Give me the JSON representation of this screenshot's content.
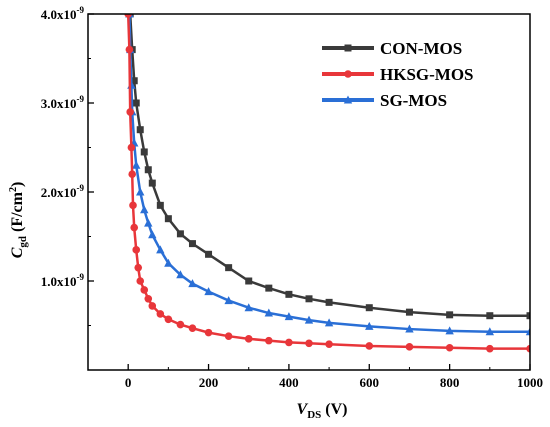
{
  "chart_data": {
    "type": "line",
    "xlabel": {
      "main": "V",
      "sub": "DS",
      "unit": " (V)"
    },
    "ylabel": {
      "main": "C",
      "sub": "gd",
      "unit_pre": " (F/cm",
      "unit_sup": "2",
      "unit_post": ")"
    },
    "xlim": [
      -100,
      1000
    ],
    "ylim": [
      0.0,
      4.0
    ],
    "y_scale_note": "values in units of 1e-9 F/cm^2",
    "x_ticks": [
      0,
      200,
      400,
      600,
      800,
      1000
    ],
    "x_tick_labels": [
      "0",
      "200",
      "400",
      "600",
      "800",
      "1000"
    ],
    "y_ticks": [
      1.0,
      2.0,
      3.0,
      4.0
    ],
    "y_tick_labels": [
      {
        "mant": "1.0x10",
        "exp": "-9"
      },
      {
        "mant": "2.0x10",
        "exp": "-9"
      },
      {
        "mant": "3.0x10",
        "exp": "-9"
      },
      {
        "mant": "4.0x10",
        "exp": "-9"
      }
    ],
    "grid": false,
    "legend_position": "top-right",
    "series": [
      {
        "name": "CON-MOS",
        "color": "#3a3a3a",
        "marker": "square",
        "x": [
          5,
          10,
          15,
          20,
          30,
          40,
          50,
          60,
          80,
          100,
          130,
          160,
          200,
          250,
          300,
          350,
          400,
          450,
          500,
          600,
          700,
          800,
          900,
          1000
        ],
        "y": [
          4.0,
          3.6,
          3.25,
          3.0,
          2.7,
          2.45,
          2.25,
          2.1,
          1.85,
          1.7,
          1.53,
          1.42,
          1.3,
          1.15,
          1.0,
          0.92,
          0.85,
          0.8,
          0.76,
          0.7,
          0.65,
          0.62,
          0.61,
          0.61
        ]
      },
      {
        "name": "HKSG-MOS",
        "color": "#e8363a",
        "marker": "circle",
        "x": [
          0,
          3,
          5,
          8,
          10,
          12,
          15,
          20,
          25,
          30,
          40,
          50,
          60,
          80,
          100,
          130,
          160,
          200,
          250,
          300,
          350,
          400,
          450,
          500,
          600,
          700,
          800,
          900,
          1000
        ],
        "y": [
          4.0,
          3.6,
          2.9,
          2.5,
          2.2,
          1.85,
          1.6,
          1.35,
          1.15,
          1.0,
          0.9,
          0.8,
          0.72,
          0.63,
          0.57,
          0.51,
          0.47,
          0.42,
          0.38,
          0.35,
          0.33,
          0.31,
          0.3,
          0.29,
          0.27,
          0.26,
          0.25,
          0.24,
          0.24
        ]
      },
      {
        "name": "SG-MOS",
        "color": "#2a6fd6",
        "marker": "triangle",
        "x": [
          3,
          5,
          8,
          10,
          15,
          20,
          30,
          40,
          50,
          60,
          80,
          100,
          130,
          160,
          200,
          250,
          300,
          350,
          400,
          450,
          500,
          600,
          700,
          800,
          900,
          1000
        ],
        "y": [
          4.0,
          3.6,
          3.2,
          2.9,
          2.55,
          2.3,
          2.0,
          1.8,
          1.65,
          1.52,
          1.35,
          1.2,
          1.07,
          0.97,
          0.88,
          0.78,
          0.7,
          0.64,
          0.6,
          0.56,
          0.53,
          0.49,
          0.46,
          0.44,
          0.43,
          0.43
        ]
      }
    ]
  }
}
